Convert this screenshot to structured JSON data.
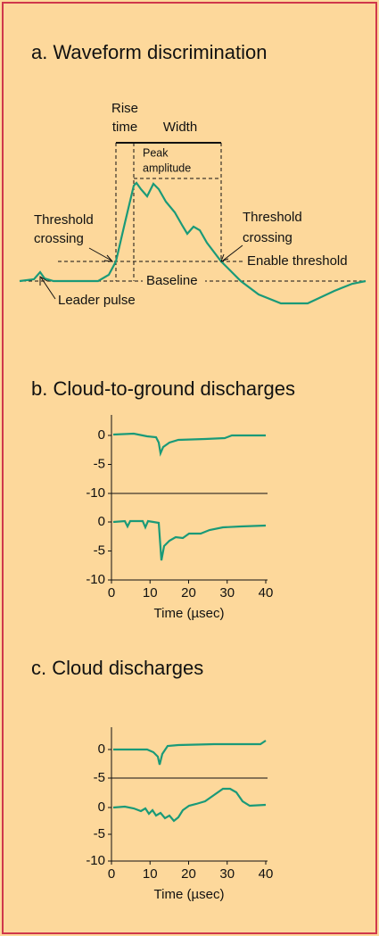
{
  "panel_a": {
    "title": "a. Waveform discrimination",
    "labels": {
      "rise": "Rise",
      "time": "time",
      "width": "Width",
      "peak": "Peak",
      "amplitude": "amplitude",
      "threshold_left": "Threshold",
      "crossing_left": "crossing",
      "threshold_right": "Threshold",
      "crossing_right": "crossing",
      "enable_threshold": "Enable threshold",
      "baseline": "Baseline",
      "leader_pulse": "Leader pulse"
    }
  },
  "panel_b": {
    "title": "b. Cloud-to-ground discharges",
    "plots": [
      {
        "yticks": [
          0,
          -5,
          -10
        ]
      },
      {
        "yticks": [
          0,
          -5,
          -10
        ]
      }
    ],
    "xticks": [
      0,
      10,
      20,
      30,
      40
    ],
    "xlabel": "Time (µsec)"
  },
  "panel_c": {
    "title": "c. Cloud discharges",
    "plots": [
      {
        "yticks": [
          0,
          -5
        ]
      },
      {
        "yticks": [
          0,
          -5,
          -10
        ]
      }
    ],
    "xticks": [
      0,
      10,
      20,
      30,
      40
    ],
    "xlabel": "Time (µsec)"
  }
}
